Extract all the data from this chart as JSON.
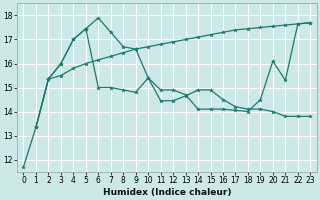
{
  "xlabel": "Humidex (Indice chaleur)",
  "bg_color": "#cce8e8",
  "grid_color": "#ffffff",
  "line_color": "#1a7a6e",
  "xlim": [
    -0.5,
    23.5
  ],
  "ylim": [
    11.5,
    18.5
  ],
  "xticks": [
    0,
    1,
    2,
    3,
    4,
    5,
    6,
    7,
    8,
    9,
    10,
    11,
    12,
    13,
    14,
    15,
    16,
    17,
    18,
    19,
    20,
    21,
    22,
    23
  ],
  "yticks": [
    12,
    13,
    14,
    15,
    16,
    17,
    18
  ],
  "line1_x": [
    0,
    1,
    2,
    3,
    4,
    5,
    6,
    7,
    8,
    9,
    10,
    11,
    12,
    13,
    14,
    15,
    16,
    17,
    18,
    19,
    20,
    21,
    22,
    23
  ],
  "line1_y": [
    11.7,
    13.35,
    15.35,
    16.0,
    17.0,
    17.45,
    17.9,
    17.3,
    16.7,
    16.6,
    15.4,
    14.45,
    14.45,
    14.65,
    14.9,
    14.9,
    14.5,
    14.2,
    14.1,
    14.1,
    14.0,
    13.8,
    13.8,
    13.8
  ],
  "line2_x": [
    1,
    2,
    3,
    4,
    5,
    6,
    7,
    8,
    9,
    10,
    11,
    12,
    13,
    14,
    15,
    16,
    17,
    18,
    19,
    20,
    21,
    22,
    23
  ],
  "line2_y": [
    13.35,
    15.35,
    15.5,
    15.8,
    16.0,
    16.15,
    16.3,
    16.45,
    16.6,
    16.7,
    16.8,
    16.9,
    17.0,
    17.1,
    17.2,
    17.3,
    17.4,
    17.45,
    17.5,
    17.55,
    17.6,
    17.65,
    17.7
  ],
  "line3_x": [
    1,
    2,
    3,
    4,
    5,
    6,
    7,
    8,
    9,
    10,
    11,
    12,
    13,
    14,
    15,
    16,
    17,
    18,
    19,
    20,
    21,
    22,
    23
  ],
  "line3_y": [
    13.35,
    15.35,
    16.0,
    17.0,
    17.45,
    15.0,
    15.0,
    14.9,
    14.8,
    15.4,
    14.9,
    14.9,
    14.7,
    14.1,
    14.1,
    14.1,
    14.05,
    14.0,
    14.5,
    16.1,
    15.3,
    17.65,
    17.7
  ]
}
